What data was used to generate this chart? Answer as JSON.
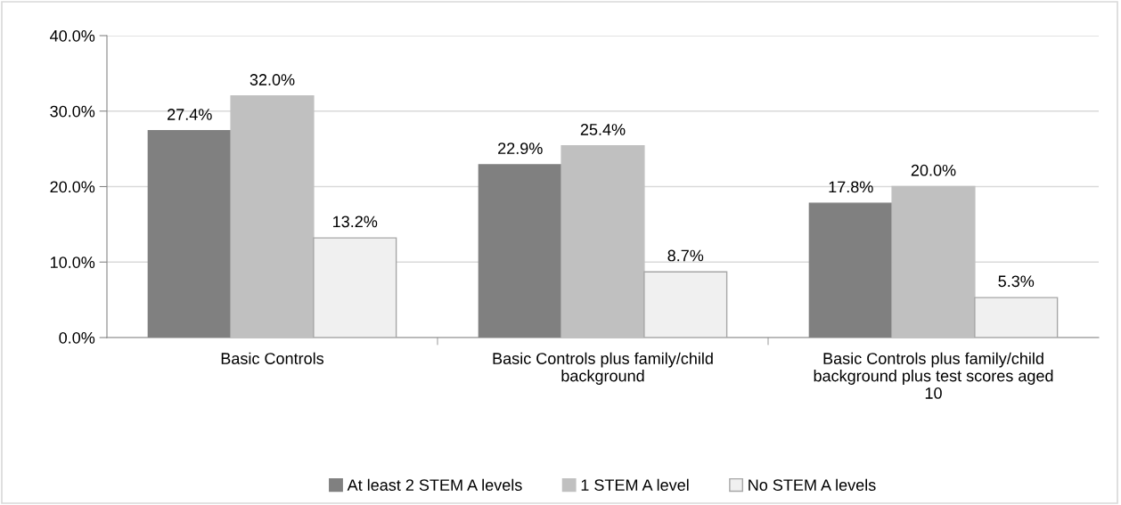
{
  "chart_data": {
    "type": "bar",
    "categories": [
      "Basic Controls",
      "Basic Controls plus family/child\nbackground",
      "Basic Controls plus family/child\nbackground plus test scores aged\n10"
    ],
    "series": [
      {
        "name": "At least 2 STEM A levels",
        "color": "#808080",
        "values": [
          27.4,
          22.9,
          17.8
        ],
        "value_labels": [
          "27.4%",
          "22.9%",
          "17.8%"
        ]
      },
      {
        "name": "1 STEM A level",
        "color": "#c0c0c0",
        "values": [
          32.0,
          25.4,
          20.0
        ],
        "value_labels": [
          "32.0%",
          "25.4%",
          "20.0%"
        ]
      },
      {
        "name": "No STEM A levels",
        "color": "#f0f0f0",
        "values": [
          13.2,
          8.7,
          5.3
        ],
        "value_labels": [
          "13.2%",
          "8.7%",
          "5.3%"
        ]
      }
    ],
    "ylim": [
      0,
      40
    ],
    "yticks": [
      {
        "value": 0,
        "label": "0.0%"
      },
      {
        "value": 10,
        "label": "10.0%"
      },
      {
        "value": 20,
        "label": "20.0%"
      },
      {
        "value": 30,
        "label": "30.0%"
      },
      {
        "value": 40,
        "label": "40.0%"
      }
    ],
    "grid": "y",
    "legend": "bottom"
  }
}
